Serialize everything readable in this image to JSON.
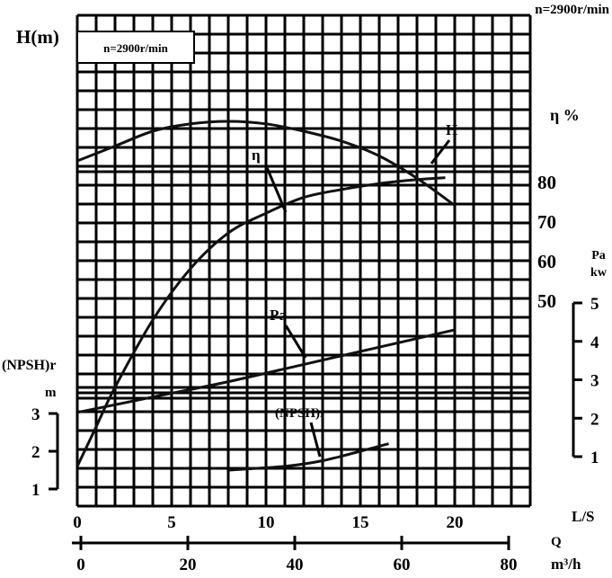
{
  "chart_data": {
    "type": "line",
    "title": "n=2900r/min",
    "box_label": "n=2900r/min",
    "x_axis": {
      "label": "L/S",
      "range": [
        0,
        24
      ],
      "ticks": [
        0,
        5,
        10,
        15,
        20
      ]
    },
    "x_axis_secondary": {
      "label_q": "Q",
      "label": "m³/h",
      "range": [
        0,
        80
      ],
      "ticks": [
        0,
        20,
        40,
        60,
        80
      ]
    },
    "y_axis_head": {
      "label": "H(m)"
    },
    "y_axis_eff": {
      "label": "η %",
      "range": [
        50,
        80
      ],
      "ticks": [
        50,
        60,
        70,
        80
      ]
    },
    "y_axis_power": {
      "label_line1": "Pa",
      "label_line2": "kw",
      "range": [
        1,
        5
      ],
      "ticks": [
        1,
        2,
        3,
        4,
        5
      ]
    },
    "y_axis_npsh": {
      "label_line1": "(NPSH)r",
      "label_line2": "m",
      "range": [
        1,
        3
      ],
      "ticks": [
        1,
        2,
        3
      ]
    },
    "series": [
      {
        "name": "H",
        "axis": "head",
        "x": [
          0,
          2,
          4,
          6,
          8,
          10,
          12,
          14,
          16,
          18,
          20
        ],
        "y": [
          0.84,
          0.9,
          0.96,
          0.99,
          1.0,
          0.99,
          0.96,
          0.92,
          0.86,
          0.77,
          0.66
        ]
      },
      {
        "name": "η",
        "axis": "eff",
        "x": [
          0,
          1,
          2,
          4,
          6,
          8,
          10,
          12,
          14,
          16,
          18,
          19.5
        ],
        "y": [
          8,
          18,
          28,
          45,
          58,
          67,
          72,
          76,
          78,
          79.5,
          80.5,
          81
        ]
      },
      {
        "name": "Pa",
        "axis": "power",
        "x": [
          0,
          4,
          8,
          12,
          16,
          20
        ],
        "y": [
          2.15,
          2.55,
          2.95,
          3.4,
          3.85,
          4.3
        ]
      },
      {
        "name": "(NPSH)r",
        "axis": "npsh",
        "x": [
          8,
          11,
          13,
          15,
          16.5
        ],
        "y": [
          1.5,
          1.6,
          1.75,
          2.0,
          2.2
        ]
      }
    ]
  }
}
